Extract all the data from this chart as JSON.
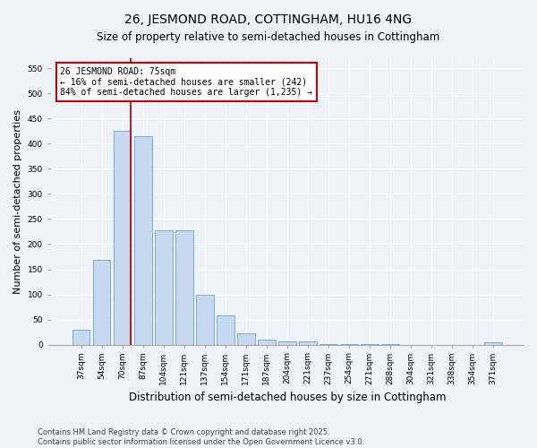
{
  "title": "26, JESMOND ROAD, COTTINGHAM, HU16 4NG",
  "subtitle": "Size of property relative to semi-detached houses in Cottingham",
  "xlabel": "Distribution of semi-detached houses by size in Cottingham",
  "ylabel": "Number of semi-detached properties",
  "categories": [
    "37sqm",
    "54sqm",
    "70sqm",
    "87sqm",
    "104sqm",
    "121sqm",
    "137sqm",
    "154sqm",
    "171sqm",
    "187sqm",
    "204sqm",
    "221sqm",
    "237sqm",
    "254sqm",
    "271sqm",
    "288sqm",
    "304sqm",
    "321sqm",
    "338sqm",
    "354sqm",
    "371sqm"
  ],
  "values": [
    30,
    168,
    425,
    415,
    228,
    228,
    100,
    58,
    22,
    10,
    6,
    6,
    2,
    1,
    1,
    1,
    0,
    0,
    0,
    0,
    4
  ],
  "bar_color": "#c5d9f0",
  "bar_edge_color": "#7aabcf",
  "vline_color": "#cc0000",
  "annotation_text": "26 JESMOND ROAD: 75sqm\n← 16% of semi-detached houses are smaller (242)\n84% of semi-detached houses are larger (1,235) →",
  "annotation_box_color": "#ffffff",
  "annotation_box_edge": "#cc0000",
  "ylim": [
    0,
    570
  ],
  "yticks": [
    0,
    50,
    100,
    150,
    200,
    250,
    300,
    350,
    400,
    450,
    500,
    550
  ],
  "footer_line1": "Contains HM Land Registry data © Crown copyright and database right 2025.",
  "footer_line2": "Contains public sector information licensed under the Open Government Licence v3.0.",
  "bg_color": "#eef2f9",
  "plot_bg_color": "#eef2f9",
  "title_fontsize": 10,
  "subtitle_fontsize": 8.5,
  "axis_label_fontsize": 8,
  "tick_fontsize": 6.5,
  "footer_fontsize": 6,
  "annotation_fontsize": 7,
  "vline_x_index": 2
}
